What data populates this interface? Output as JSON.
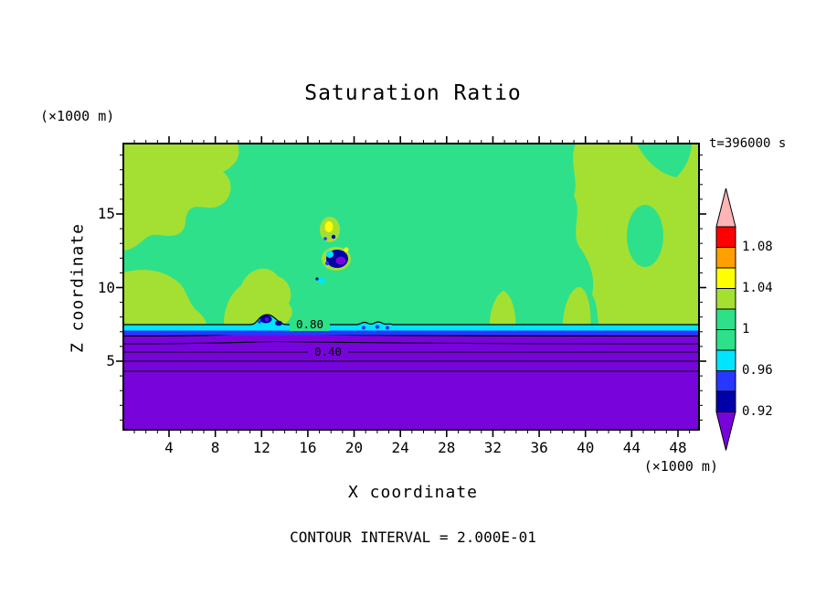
{
  "title": "Saturation Ratio",
  "annotations": {
    "time": "t=396000 s",
    "y_unit": "(×1000 m)",
    "x_unit": "(×1000 m)",
    "footer": "CONTOUR INTERVAL = 2.000E-01"
  },
  "axes": {
    "x": {
      "label": "X coordinate",
      "tick_labels": [
        "4",
        "8",
        "12",
        "16",
        "20",
        "24",
        "28",
        "32",
        "36",
        "40",
        "44",
        "48"
      ]
    },
    "y": {
      "label": "Z coordinate",
      "tick_labels": [
        "5",
        "10",
        "15"
      ]
    }
  },
  "plot": {
    "contour_labels": [
      "0.80",
      "0.40"
    ]
  },
  "palette": {
    "background": "#FFFFFF",
    "green": "#2EE08A",
    "chartreuse": "#A4E032",
    "cyan": "#00E5FF",
    "blue": "#2638FF",
    "navy": "#0000A8",
    "purple": "#7804DC",
    "yellow": "#FFFF00",
    "orange": "#FFA000",
    "red": "#FF0000",
    "pink": "#FFB5B5",
    "axis": "#000000"
  },
  "colorbar": {
    "arrow_top_color": "#FFB5B5",
    "arrow_bottom_color": "#7804DC",
    "bands": [
      {
        "color": "#FF0000",
        "label": "1.08"
      },
      {
        "color": "#FFA000",
        "label": ""
      },
      {
        "color": "#FFFF00",
        "label": "1.04"
      },
      {
        "color": "#A4E032",
        "label": ""
      },
      {
        "color": "#2EE08A",
        "label": "1"
      },
      {
        "color": "#2EE08A",
        "label": ""
      },
      {
        "color": "#00E5FF",
        "label": "0.96"
      },
      {
        "color": "#2638FF",
        "label": ""
      },
      {
        "color": "#0000A8",
        "label": "0.92"
      }
    ]
  },
  "chart_data": {
    "type": "heatmap",
    "title": "Saturation Ratio",
    "xlabel": "X coordinate (×1000 m)",
    "ylabel": "Z coordinate (×1000 m)",
    "xlim": [
      0,
      50
    ],
    "ylim": [
      0,
      20
    ],
    "time": "t=396000 s",
    "contour_interval": 0.2,
    "colorbar_levels": [
      0.92,
      0.96,
      1,
      1.04,
      1.08
    ],
    "line_contour_labels": [
      0.8,
      0.4
    ],
    "legend_position": "right",
    "grid": false,
    "x": [
      2,
      6,
      10,
      14,
      18,
      22,
      26,
      30,
      34,
      38,
      42,
      46,
      50
    ],
    "z": [
      18,
      16,
      14,
      12,
      10,
      8,
      7,
      6,
      5,
      3
    ],
    "values": [
      [
        1.02,
        1.02,
        1.0,
        1.0,
        1.0,
        1.0,
        1.0,
        1.0,
        1.0,
        1.0,
        1.02,
        1.02,
        1.02
      ],
      [
        1.02,
        1.02,
        1.02,
        1.0,
        1.0,
        1.0,
        1.0,
        1.0,
        1.0,
        1.0,
        1.02,
        1.02,
        1.02
      ],
      [
        1.02,
        1.0,
        1.0,
        1.0,
        1.04,
        1.0,
        1.0,
        1.0,
        1.0,
        1.0,
        1.02,
        1.02,
        1.02
      ],
      [
        1.0,
        1.0,
        1.02,
        1.02,
        0.92,
        1.0,
        1.0,
        1.0,
        1.0,
        1.0,
        1.02,
        1.02,
        1.02
      ],
      [
        1.02,
        1.0,
        1.02,
        1.0,
        1.0,
        1.0,
        1.0,
        1.0,
        1.0,
        1.0,
        1.0,
        1.02,
        1.02
      ],
      [
        1.02,
        1.0,
        1.02,
        1.0,
        1.0,
        1.0,
        1.0,
        1.0,
        1.0,
        1.0,
        1.0,
        1.02,
        1.02
      ],
      [
        0.96,
        0.96,
        0.96,
        0.96,
        0.96,
        0.96,
        0.96,
        0.96,
        0.96,
        0.96,
        0.96,
        0.96,
        0.96
      ],
      [
        0.8,
        0.8,
        0.8,
        0.8,
        0.8,
        0.8,
        0.8,
        0.8,
        0.8,
        0.8,
        0.8,
        0.8,
        0.8
      ],
      [
        0.5,
        0.5,
        0.5,
        0.5,
        0.5,
        0.5,
        0.5,
        0.5,
        0.5,
        0.5,
        0.5,
        0.5,
        0.5
      ],
      [
        0.2,
        0.2,
        0.2,
        0.2,
        0.2,
        0.2,
        0.2,
        0.2,
        0.2,
        0.2,
        0.2,
        0.2,
        0.2
      ]
    ]
  }
}
